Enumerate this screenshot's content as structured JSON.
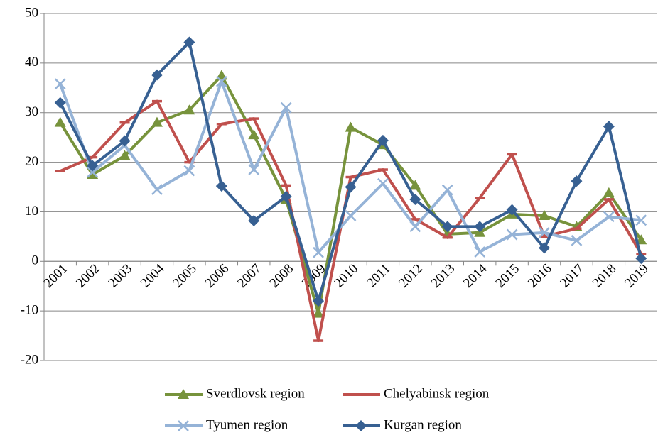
{
  "chart_data": {
    "type": "line",
    "categories": [
      "2001",
      "2002",
      "2003",
      "2004",
      "2005",
      "2006",
      "2007",
      "2008",
      "2009",
      "2010",
      "2011",
      "2012",
      "2013",
      "2014",
      "2015",
      "2016",
      "2017",
      "2018",
      "2019"
    ],
    "series": [
      {
        "name": "Sverdlovsk region",
        "color": "#77933c",
        "marker": "triangle",
        "values": [
          28,
          17.5,
          21.3,
          28,
          30.5,
          37.5,
          25.5,
          12.5,
          -10.5,
          27,
          23.5,
          15.3,
          5.5,
          5.8,
          9.5,
          9.2,
          7,
          13.8,
          4.3
        ]
      },
      {
        "name": "Chelyabinsk region",
        "color": "#c0504d",
        "marker": "dash",
        "values": [
          18.2,
          21,
          28,
          32.3,
          20,
          27.7,
          28.8,
          15.3,
          -16,
          17,
          18.5,
          8.5,
          4.8,
          12.8,
          21.6,
          5,
          6.6,
          12.5,
          1.5
        ]
      },
      {
        "name": "Tyumen region",
        "color": "#95b3d7",
        "marker": "x",
        "values": [
          35.8,
          18,
          23.4,
          14.5,
          18.3,
          36.3,
          18.5,
          31,
          1.8,
          9.2,
          15.7,
          7,
          14.4,
          1.9,
          5.4,
          5.8,
          4.2,
          9,
          8.3
        ]
      },
      {
        "name": "Kurgan region",
        "color": "#376092",
        "marker": "diamond",
        "values": [
          32,
          19.3,
          24.3,
          37.6,
          44.2,
          15.2,
          8.2,
          13.1,
          -8,
          15,
          24.4,
          12.5,
          7,
          7,
          10.4,
          2.7,
          16.2,
          27.2,
          0.6
        ]
      }
    ],
    "ylim": [
      -20,
      50
    ],
    "yticks": [
      -20,
      -10,
      0,
      10,
      20,
      30,
      40,
      50
    ],
    "grid": true,
    "legend": "bottom"
  }
}
